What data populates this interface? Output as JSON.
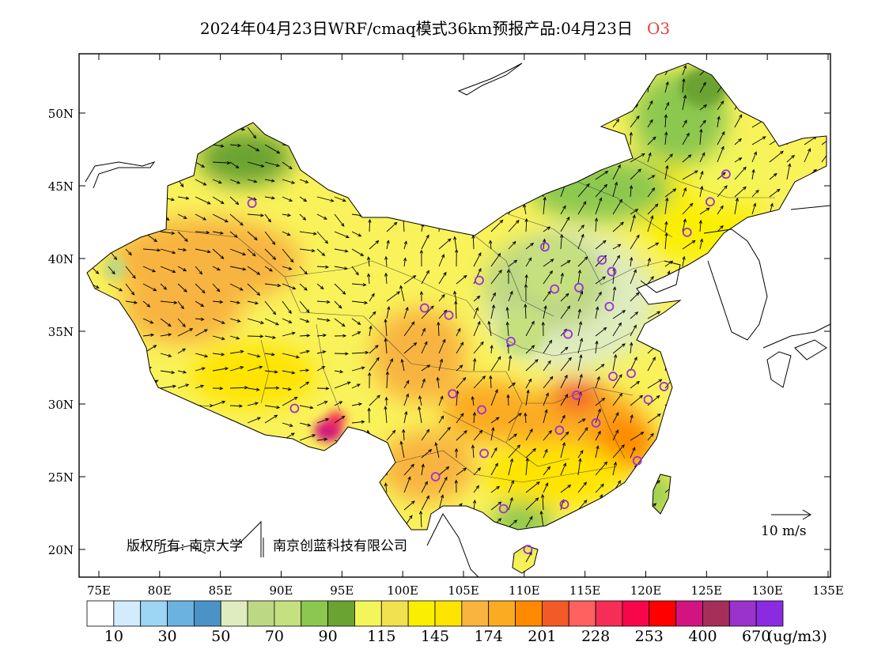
{
  "title": {
    "main": "2024年04月23日WRF/cmaq模式36km预报产品:04月23日",
    "species": "O3"
  },
  "map": {
    "lat_ticks": [
      "50N",
      "45N",
      "40N",
      "35N",
      "30N",
      "25N",
      "20N"
    ],
    "lon_ticks": [
      "75E",
      "80E",
      "85E",
      "90E",
      "95E",
      "100E",
      "105E",
      "110E",
      "115E",
      "120E",
      "125E",
      "130E",
      "135E"
    ],
    "copyright": "版权所有: 南京大学",
    "copyright2": "南京创蓝科技有限公司",
    "wind_label": "10 m/s"
  },
  "colorbar": {
    "colors": [
      "#ffffff",
      "#d3ecfb",
      "#9dd5f4",
      "#6cb2e0",
      "#4b93c7",
      "#dfecbf",
      "#bdd884",
      "#c5e07f",
      "#8cc84f",
      "#6ba332",
      "#f3f65a",
      "#f2e14f",
      "#fbef00",
      "#ffe400",
      "#f8b43f",
      "#fbab22",
      "#ff8a00",
      "#f25a28",
      "#ff6060",
      "#f52e57",
      "#f8064a",
      "#ff0000",
      "#d1147f",
      "#a62f5a",
      "#9933cc",
      "#8a2be2"
    ],
    "labels": [
      "10",
      "30",
      "50",
      "70",
      "90",
      "115",
      "145",
      "174",
      "201",
      "228",
      "253",
      "400",
      "670"
    ],
    "unit": "(ug/m3)"
  },
  "stations": [
    [
      87.6,
      43.8
    ],
    [
      91.1,
      29.7
    ],
    [
      101.8,
      36.6
    ],
    [
      103.8,
      36.1
    ],
    [
      106.3,
      38.5
    ],
    [
      108.9,
      34.3
    ],
    [
      111.7,
      40.8
    ],
    [
      112.5,
      37.9
    ],
    [
      114.5,
      38.0
    ],
    [
      116.4,
      39.9
    ],
    [
      117.2,
      39.1
    ],
    [
      113.6,
      34.8
    ],
    [
      117.0,
      36.7
    ],
    [
      114.3,
      30.6
    ],
    [
      112.9,
      28.2
    ],
    [
      115.9,
      28.7
    ],
    [
      117.3,
      31.9
    ],
    [
      118.8,
      32.1
    ],
    [
      120.2,
      30.3
    ],
    [
      121.5,
      31.2
    ],
    [
      119.3,
      26.1
    ],
    [
      113.3,
      23.1
    ],
    [
      108.3,
      22.8
    ],
    [
      110.3,
      20.0
    ],
    [
      102.7,
      25.0
    ],
    [
      106.7,
      26.6
    ],
    [
      106.5,
      29.6
    ],
    [
      104.1,
      30.7
    ],
    [
      123.4,
      41.8
    ],
    [
      125.3,
      43.9
    ],
    [
      126.6,
      45.8
    ]
  ]
}
